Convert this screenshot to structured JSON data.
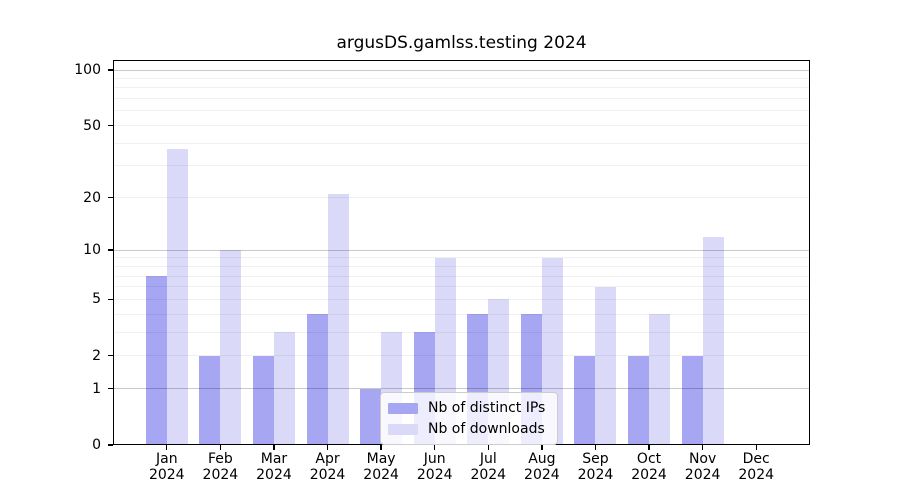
{
  "chart_data": {
    "type": "bar",
    "title": "argusDS.gamlss.testing 2024",
    "year": "2024",
    "categories": [
      "Jan",
      "Feb",
      "Mar",
      "Apr",
      "May",
      "Jun",
      "Jul",
      "Aug",
      "Sep",
      "Oct",
      "Nov",
      "Dec"
    ],
    "series": [
      {
        "name": "Nb of distinct IPs",
        "color": "#a6a6f2",
        "values": [
          7,
          2,
          2,
          4,
          1,
          3,
          4,
          4,
          2,
          2,
          2,
          0
        ]
      },
      {
        "name": "Nb of downloads",
        "color": "#dadaf8",
        "values": [
          37,
          10,
          3,
          21,
          3,
          9,
          5,
          9,
          6,
          4,
          12,
          0
        ]
      }
    ],
    "y_scale": "log10(value+1)",
    "y_ticks": [
      0,
      1,
      2,
      5,
      10,
      20,
      50,
      100
    ],
    "y_major_gridlines": [
      1,
      10,
      100
    ],
    "ylim": [
      0,
      110
    ],
    "xlabel": "",
    "ylabel": "",
    "grid": "horizontal major+minor",
    "legend_position": "lower center"
  }
}
